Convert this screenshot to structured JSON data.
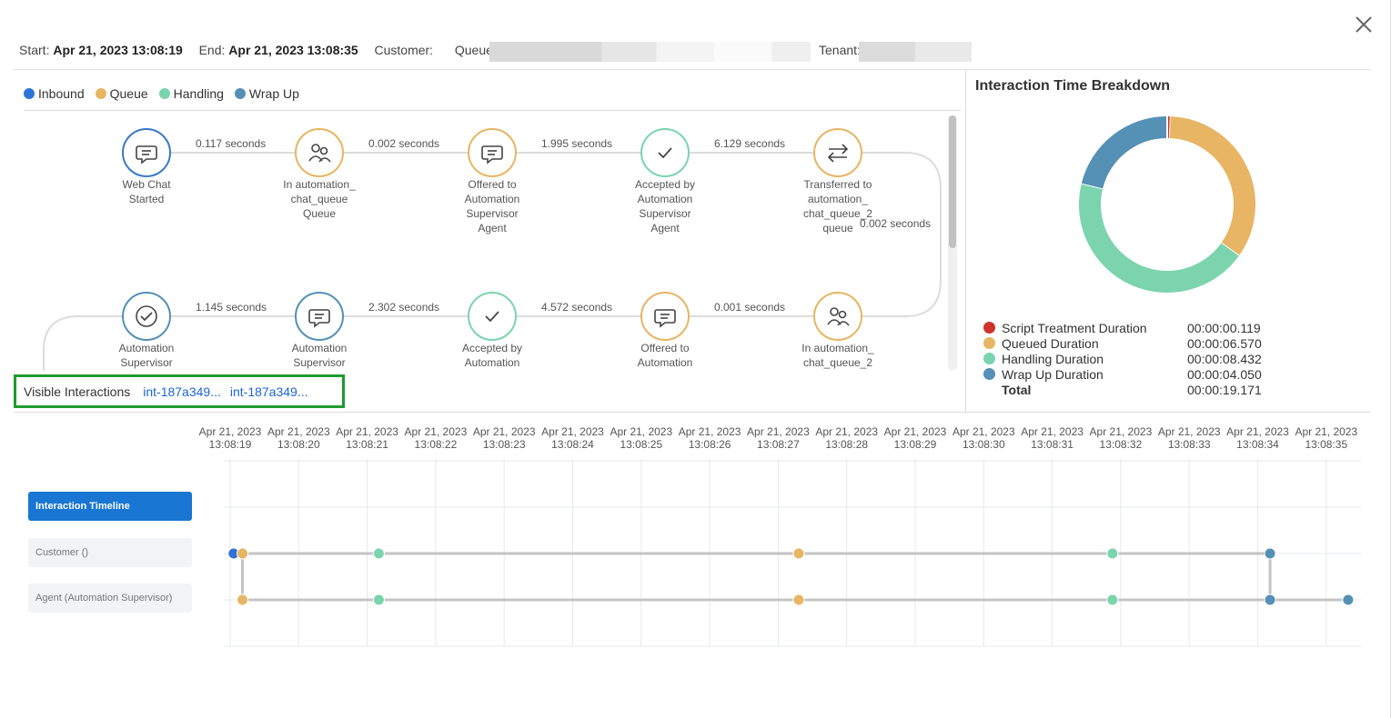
{
  "header": {
    "start_label": "Start:",
    "start_value": "Apr 21, 2023 13:08:19",
    "end_label": "End:",
    "end_value": "Apr 21, 2023 13:08:35",
    "customer_label": "Customer:",
    "queues_label": "Queues:",
    "tenant_label": "Tenant:"
  },
  "legend": [
    {
      "label": "Inbound",
      "color": "#2f74d6"
    },
    {
      "label": "Queue",
      "color": "#e7b563"
    },
    {
      "label": "Handling",
      "color": "#7bd4ad"
    },
    {
      "label": "Wrap Up",
      "color": "#5590b5"
    }
  ],
  "flow": {
    "nodes": [
      {
        "label": "Web Chat\nStarted",
        "icon": "chat-icon",
        "color": "#3a78c9"
      },
      {
        "label": "In automation_\nchat_queue\nQueue",
        "icon": "people-icon",
        "color": "#e7b563"
      },
      {
        "label": "Offered to\nAutomation\nSupervisor\nAgent",
        "icon": "chat-icon",
        "color": "#e7b563"
      },
      {
        "label": "Accepted by\nAutomation\nSupervisor\nAgent",
        "icon": "check-icon",
        "color": "#7bd4ad"
      },
      {
        "label": "Transferred to\nautomation_\nchat_queue_2\nqueue",
        "icon": "transfer-icon",
        "color": "#e7b563"
      },
      {
        "label": "In automation_\nchat_queue_2",
        "icon": "people-icon",
        "color": "#e7b563"
      },
      {
        "label": "Offered to\nAutomation",
        "icon": "chat-icon",
        "color": "#e7b563"
      },
      {
        "label": "Accepted by\nAutomation",
        "icon": "check-icon",
        "color": "#7bd4ad"
      },
      {
        "label": "Automation\nSupervisor",
        "icon": "chat-icon",
        "color": "#5590b5"
      },
      {
        "label": "Automation\nSupervisor",
        "icon": "check-circle-icon",
        "color": "#5590b5"
      }
    ],
    "edges": [
      "0.117 seconds",
      "0.002 seconds",
      "1.995 seconds",
      "6.129 seconds",
      "0.002 seconds",
      "0.001 seconds",
      "4.572 seconds",
      "2.302 seconds",
      "1.145 seconds"
    ]
  },
  "visible_interactions": {
    "label": "Visible Interactions",
    "links": [
      "int-187a349...",
      "int-187a349..."
    ]
  },
  "breakdown": {
    "title": "Interaction Time Breakdown",
    "rows": [
      {
        "name": "Script Treatment Duration",
        "value": "00:00:00.119",
        "color": "#d0312d"
      },
      {
        "name": "Queued Duration",
        "value": "00:00:06.570",
        "color": "#e7b563"
      },
      {
        "name": "Handling Duration",
        "value": "00:00:08.432",
        "color": "#7bd4ad"
      },
      {
        "name": "Wrap Up Duration",
        "value": "00:00:04.050",
        "color": "#5590b5"
      }
    ],
    "total_label": "Total",
    "total_value": "00:00:19.171"
  },
  "timeline": {
    "tick_date": "Apr 21, 2023",
    "ticks": [
      "13:08:19",
      "13:08:20",
      "13:08:21",
      "13:08:22",
      "13:08:23",
      "13:08:24",
      "13:08:25",
      "13:08:26",
      "13:08:27",
      "13:08:28",
      "13:08:29",
      "13:08:30",
      "13:08:31",
      "13:08:32",
      "13:08:33",
      "13:08:34",
      "13:08:35"
    ],
    "buttons": [
      {
        "label": "Interaction Timeline",
        "active": true
      },
      {
        "label": "Customer ()",
        "active": false
      },
      {
        "label": "Agent (Automation Supervisor)",
        "active": false
      }
    ],
    "rows": [
      {
        "name": "customer",
        "points": [
          {
            "t": 0.05,
            "c": "inbound"
          },
          {
            "t": 0.18,
            "c": "queue"
          },
          {
            "t": 2.17,
            "c": "handling"
          },
          {
            "t": 8.3,
            "c": "queue"
          },
          {
            "t": 12.88,
            "c": "handling"
          },
          {
            "t": 15.18,
            "c": "wrap"
          }
        ]
      },
      {
        "name": "agent",
        "points": [
          {
            "t": 0.18,
            "c": "queue"
          },
          {
            "t": 2.17,
            "c": "handling"
          },
          {
            "t": 8.3,
            "c": "queue"
          },
          {
            "t": 12.88,
            "c": "handling"
          },
          {
            "t": 15.18,
            "c": "wrap"
          },
          {
            "t": 16.32,
            "c": "wrap"
          }
        ]
      }
    ]
  }
}
